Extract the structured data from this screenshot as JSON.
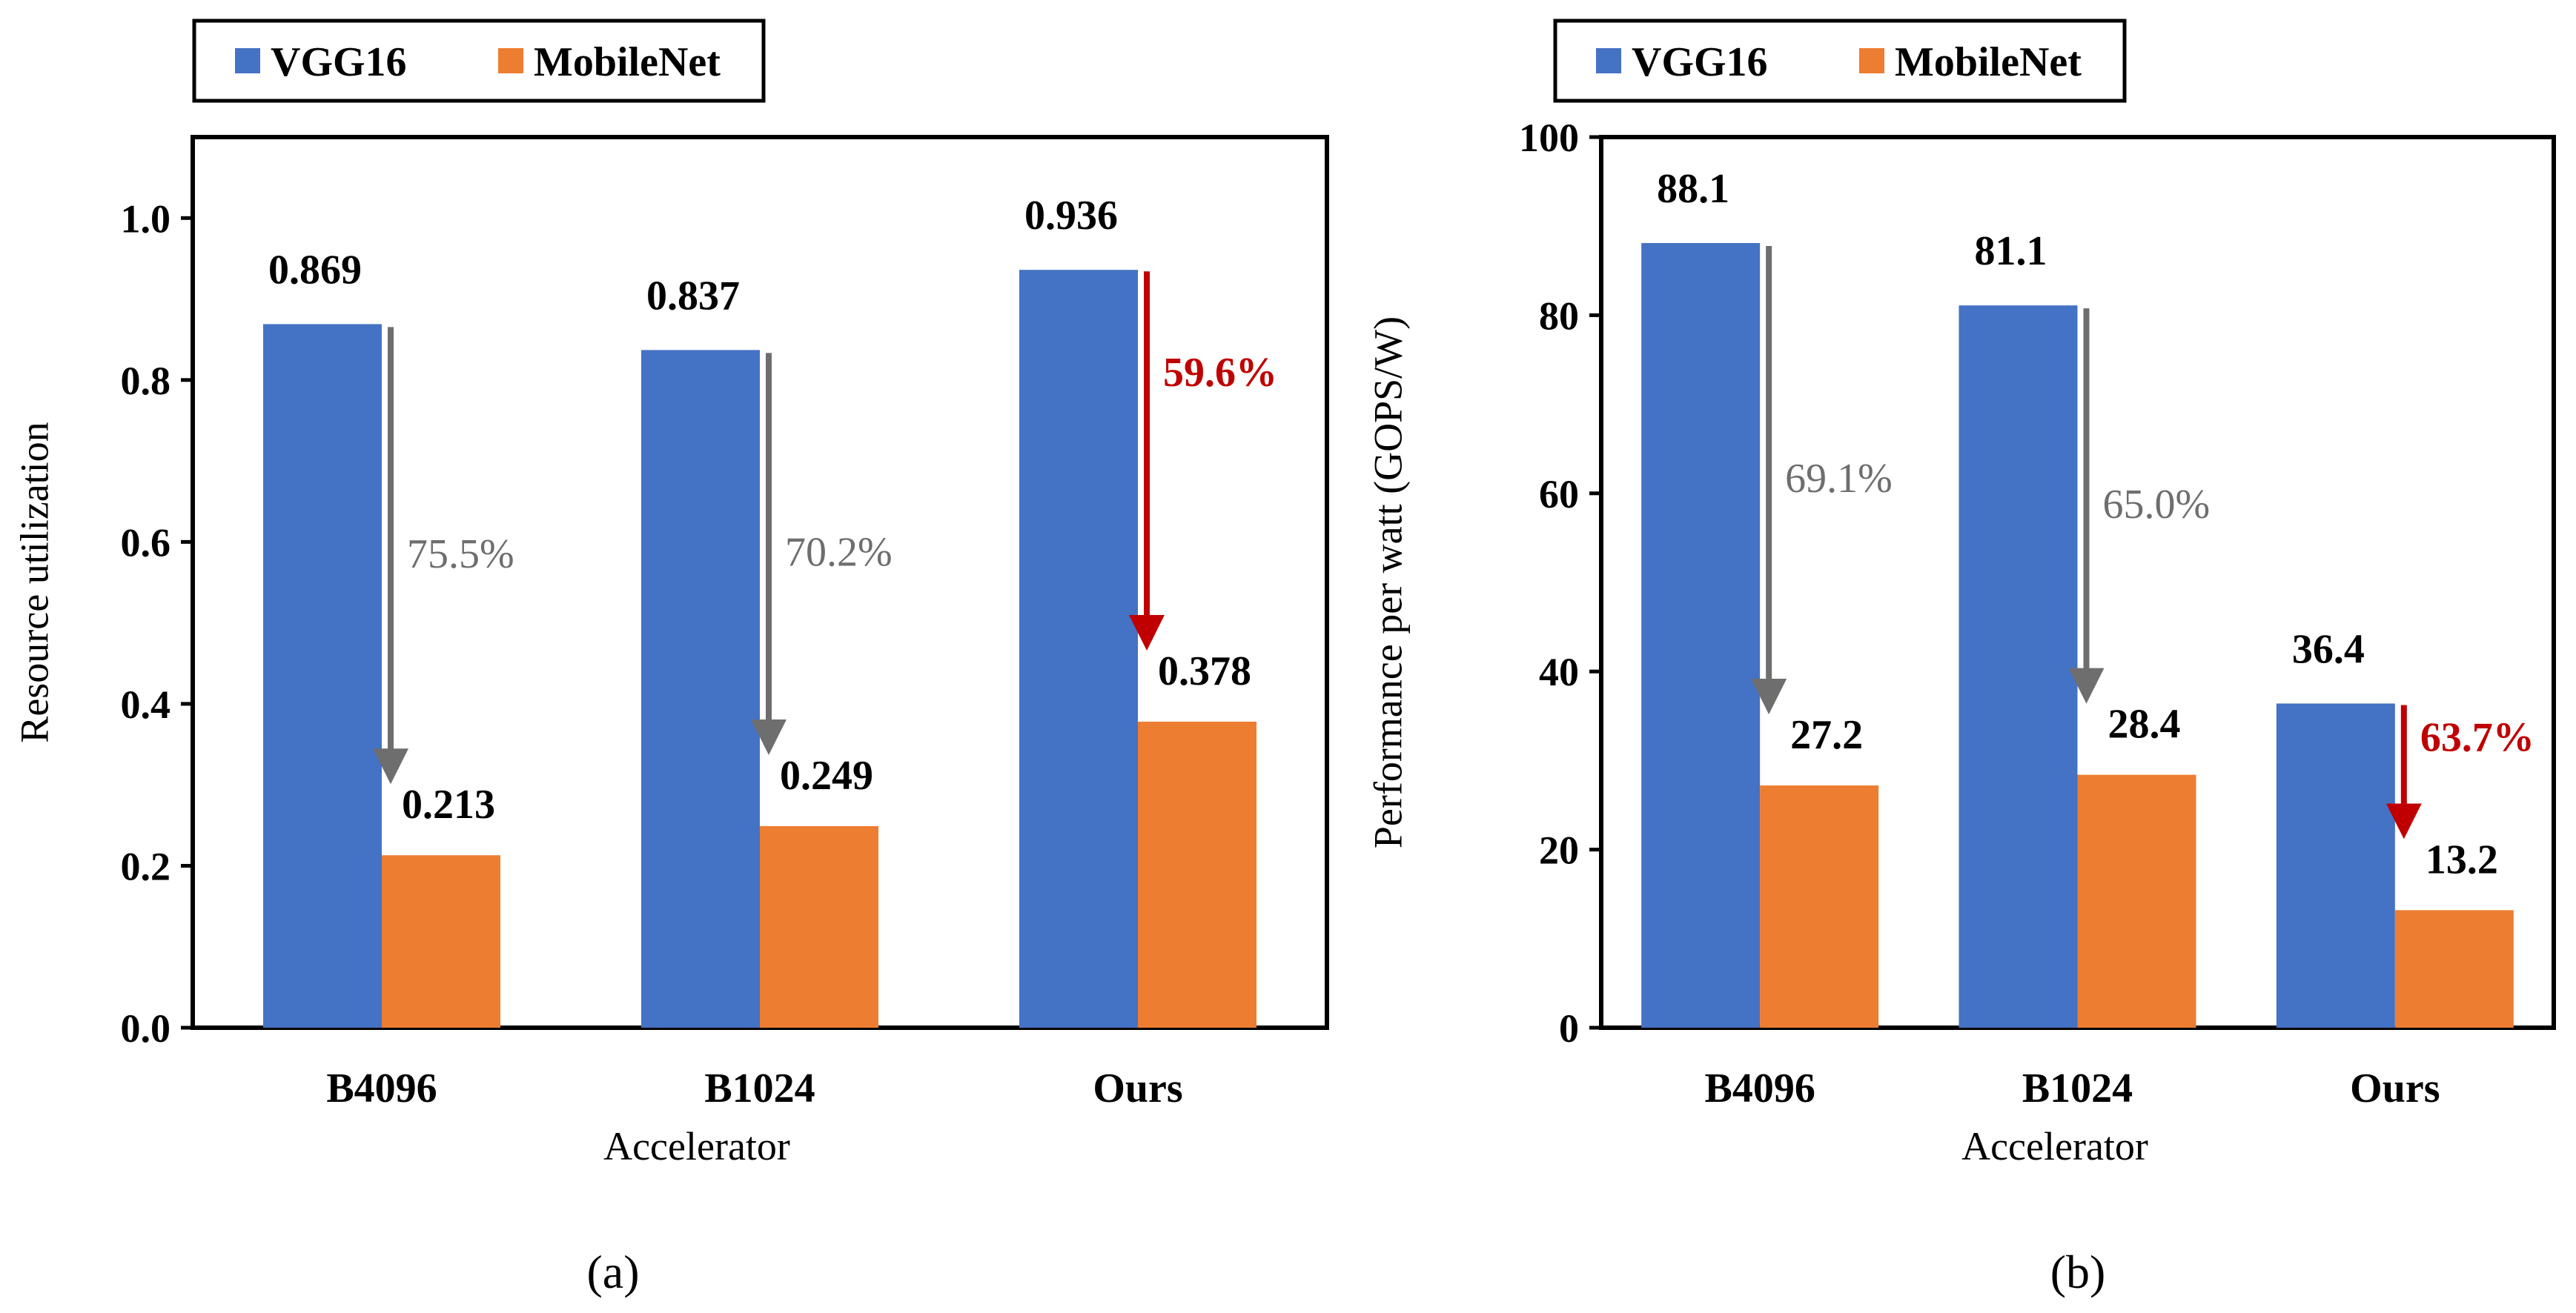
{
  "colors": {
    "vgg": "#4472C4",
    "mobilenet": "#ED7D31",
    "gray_arrow": "#6E6E6E",
    "red_arrow": "#C00000",
    "axis": "#000000"
  },
  "chart_data": [
    {
      "type": "bar",
      "panel": "(a)",
      "title": "",
      "xlabel": "Accelerator",
      "ylabel": "Resource utilization",
      "ylim": [
        0,
        1.1
      ],
      "yticks": [
        0.0,
        0.2,
        0.4,
        0.6,
        0.8,
        1.0
      ],
      "ytick_labels": [
        "0.0",
        "0.2",
        "0.4",
        "0.6",
        "0.8",
        "1.0"
      ],
      "categories": [
        "B4096",
        "B1024",
        "Ours"
      ],
      "series": [
        {
          "name": "VGG16",
          "values": [
            0.869,
            0.837,
            0.936
          ],
          "labels": [
            "0.869",
            "0.837",
            "0.936"
          ]
        },
        {
          "name": "MobileNet",
          "values": [
            0.213,
            0.249,
            0.378
          ],
          "labels": [
            "0.213",
            "0.249",
            "0.378"
          ]
        }
      ],
      "annotations": [
        {
          "category": "B4096",
          "text": "75.5%",
          "color": "gray"
        },
        {
          "category": "B1024",
          "text": "70.2%",
          "color": "gray"
        },
        {
          "category": "Ours",
          "text": "59.6%",
          "color": "red"
        }
      ],
      "legend": {
        "position": "top-left-outside",
        "entries": [
          "VGG16",
          "MobileNet"
        ]
      }
    },
    {
      "type": "bar",
      "panel": "(b)",
      "title": "",
      "xlabel": "Accelerator",
      "ylabel": "Performance per watt (GOPS/W)",
      "ylim": [
        0,
        100
      ],
      "yticks": [
        0,
        20,
        40,
        60,
        80,
        100
      ],
      "ytick_labels": [
        "0",
        "20",
        "40",
        "60",
        "80",
        "100"
      ],
      "categories": [
        "B4096",
        "B1024",
        "Ours"
      ],
      "series": [
        {
          "name": "VGG16",
          "values": [
            88.1,
            81.1,
            36.4
          ],
          "labels": [
            "88.1",
            "81.1",
            "36.4"
          ]
        },
        {
          "name": "MobileNet",
          "values": [
            27.2,
            28.4,
            13.2
          ],
          "labels": [
            "27.2",
            "28.4",
            "13.2"
          ]
        }
      ],
      "annotations": [
        {
          "category": "B4096",
          "text": "69.1%",
          "color": "gray"
        },
        {
          "category": "B1024",
          "text": "65.0%",
          "color": "gray"
        },
        {
          "category": "Ours",
          "text": "63.7%",
          "color": "red"
        }
      ],
      "legend": {
        "position": "top-left-outside",
        "entries": [
          "VGG16",
          "MobileNet"
        ]
      }
    }
  ]
}
